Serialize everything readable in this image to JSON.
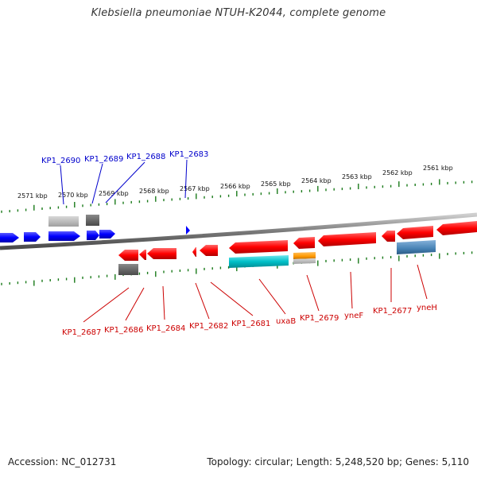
{
  "title": "Klebsiella pneumoniae NTUH-K2044, complete genome",
  "footer": {
    "accession": "Accession: NC_012731",
    "topology": "Topology: circular; Length: 5,248,520 bp; Genes: 5,110"
  },
  "scale_ticks": [
    "2571 kbp",
    "2570 kbp",
    "2569 kbp",
    "2568 kbp",
    "2567 kbp",
    "2566 kbp",
    "2565 kbp",
    "2564 kbp",
    "2563 kbp",
    "2562 kbp",
    "2561 kbp"
  ],
  "top_gene_labels": [
    "KP1_2690",
    "KP1_2689",
    "KP1_2688",
    "KP1_2683"
  ],
  "bottom_gene_labels": [
    "KP1_2687",
    "KP1_2686",
    "KP1_2684",
    "KP1_2682",
    "KP1_2681",
    "uxaB",
    "KP1_2679",
    "yneF",
    "KP1_2677",
    "yneH"
  ],
  "colors": {
    "forward_gene": "#0000ff",
    "reverse_gene": "#ff0000",
    "top_label": "#0000cc",
    "bottom_label": "#cc0000",
    "tick": "#1a7a1a",
    "backbone": "#8a8a8a",
    "teal_feature": "#00b8c0",
    "orange_feature": "#ff9900",
    "steelblue_feature": "#4682b4"
  }
}
